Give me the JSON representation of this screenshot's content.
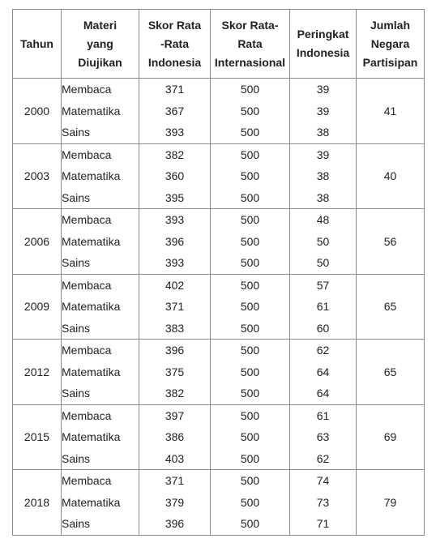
{
  "headers": {
    "year": "Tahun",
    "subject": [
      "Materi",
      "yang",
      "Diujikan"
    ],
    "indonesia_score": [
      "Skor Rata",
      "-Rata",
      "Indonesia"
    ],
    "intl_score": [
      "Skor Rata-",
      "Rata",
      "Internasional"
    ],
    "rank": [
      "Peringkat",
      "Indonesia"
    ],
    "countries": [
      "Jumlah",
      "Negara",
      "Partisipan"
    ]
  },
  "rows": [
    {
      "year": "2000",
      "subjects": [
        "Membaca",
        "Matematika",
        "Sains"
      ],
      "indonesia": [
        "371",
        "367",
        "393"
      ],
      "international": [
        "500",
        "500",
        "500"
      ],
      "rank": [
        "39",
        "39",
        "38"
      ],
      "countries": "41"
    },
    {
      "year": "2003",
      "subjects": [
        "Membaca",
        "Matematika",
        "Sains"
      ],
      "indonesia": [
        "382",
        "360",
        "395"
      ],
      "international": [
        "500",
        "500",
        "500"
      ],
      "rank": [
        "39",
        "38",
        "38"
      ],
      "countries": "40"
    },
    {
      "year": "2006",
      "subjects": [
        "Membaca",
        "Matematika",
        "Sains"
      ],
      "indonesia": [
        "393",
        "396",
        "393"
      ],
      "international": [
        "500",
        "500",
        "500"
      ],
      "rank": [
        "48",
        "50",
        "50"
      ],
      "countries": "56"
    },
    {
      "year": "2009",
      "subjects": [
        "Membaca",
        "Matematika",
        "Sains"
      ],
      "indonesia": [
        "402",
        "371",
        "383"
      ],
      "international": [
        "500",
        "500",
        "500"
      ],
      "rank": [
        "57",
        "61",
        "60"
      ],
      "countries": "65"
    },
    {
      "year": "2012",
      "subjects": [
        "Membaca",
        "Matematika",
        "Sains"
      ],
      "indonesia": [
        "396",
        "375",
        "382"
      ],
      "international": [
        "500",
        "500",
        "500"
      ],
      "rank": [
        "62",
        "64",
        "64"
      ],
      "countries": "65"
    },
    {
      "year": "2015",
      "subjects": [
        "Membaca",
        "Matematika",
        "Sains"
      ],
      "indonesia": [
        "397",
        "386",
        "403"
      ],
      "international": [
        "500",
        "500",
        "500"
      ],
      "rank": [
        "61",
        "63",
        "62"
      ],
      "countries": "69"
    },
    {
      "year": "2018",
      "subjects": [
        "Membaca",
        "Matematika",
        "Sains"
      ],
      "indonesia": [
        "371",
        "379",
        "396"
      ],
      "international": [
        "500",
        "500",
        "500"
      ],
      "rank": [
        "74",
        "73",
        "71"
      ],
      "countries": "79"
    }
  ]
}
